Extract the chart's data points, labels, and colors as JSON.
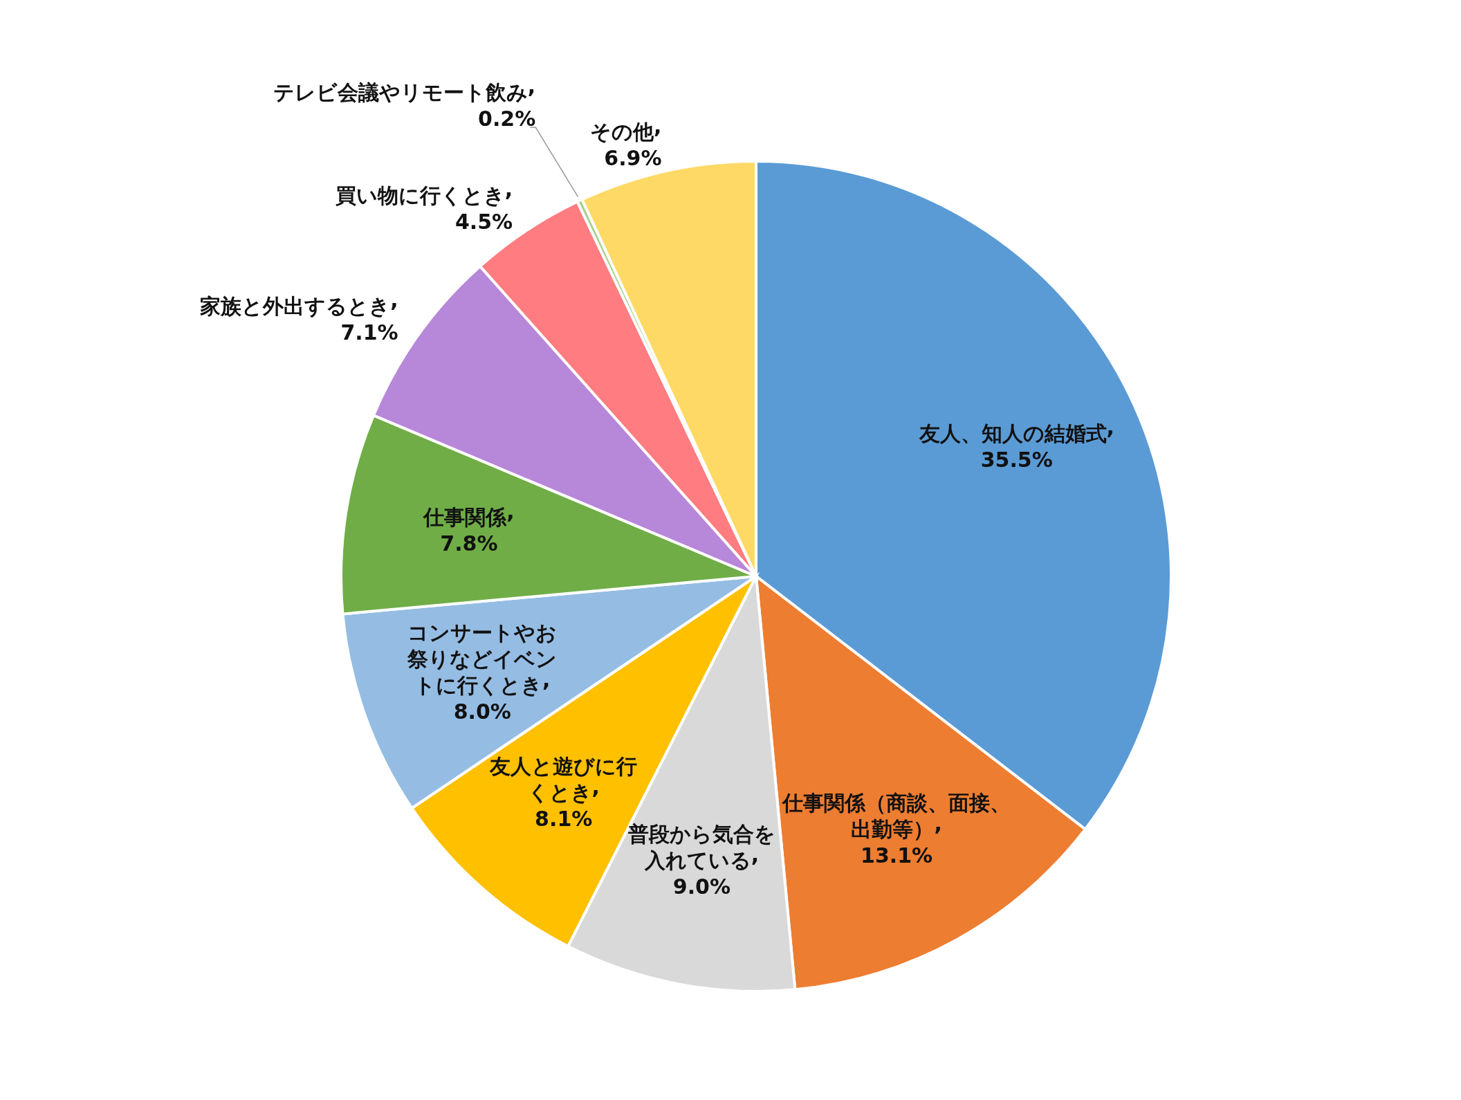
{
  "chart_data": {
    "type": "pie",
    "categories": [
      "友人、知人の結婚式",
      "仕事関係（商談、面接、出勤等）",
      "普段から気合を入れている",
      "友人と遊びに行くとき",
      "コンサートやお祭りなどイベントに行くとき",
      "仕事関係",
      "家族と外出するとき",
      "買い物に行くとき",
      "テレビ会議やリモート飲み",
      "その他"
    ],
    "values": [
      35.5,
      13.1,
      9.0,
      8.1,
      8.0,
      7.8,
      7.1,
      4.5,
      0.2,
      6.9
    ],
    "value_labels": [
      ", 35.5%",
      ", 13.1%",
      ", 9.0%",
      ", 8.1%",
      ", 8.0%",
      ", 7.8%",
      ", 7.1%",
      ", 4.5%",
      ", 0.2%",
      ", 6.9%"
    ],
    "colors": [
      "#5b9bd5",
      "#ed7d31",
      "#d9d9d9",
      "#ffc000",
      "#95bde4",
      "#70ad47",
      "#b787d9",
      "#ff7c80",
      "#a9d18e",
      "#ffd966"
    ],
    "legend": false
  }
}
